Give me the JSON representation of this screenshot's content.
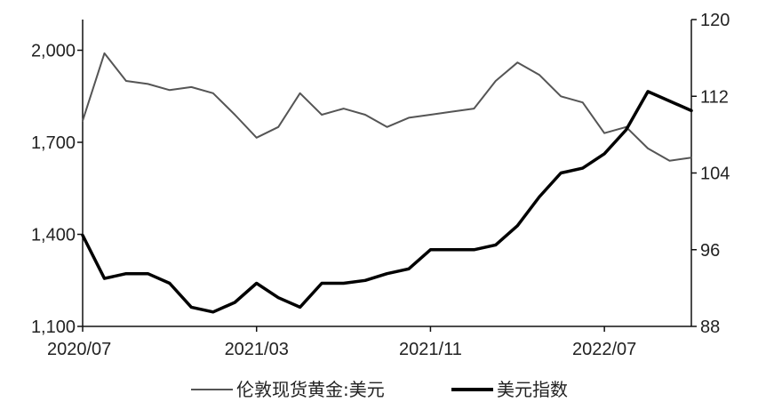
{
  "chart_data": {
    "type": "line",
    "x": [
      "2020-07",
      "2020-08",
      "2020-09",
      "2020-10",
      "2020-11",
      "2020-12",
      "2021-01",
      "2021-02",
      "2021-03",
      "2021-04",
      "2021-05",
      "2021-06",
      "2021-07",
      "2021-08",
      "2021-09",
      "2021-10",
      "2021-11",
      "2021-12",
      "2022-01",
      "2022-02",
      "2022-03",
      "2022-04",
      "2022-05",
      "2022-06",
      "2022-07",
      "2022-08",
      "2022-09",
      "2022-10",
      "2022-11"
    ],
    "x_tick_labels": [
      "2020/07",
      "2021/03",
      "2021/11",
      "2022/07"
    ],
    "y_left": {
      "range": [
        1100,
        2100
      ],
      "ticks": [
        "1,100",
        "1,400",
        "1,700",
        "2,000"
      ]
    },
    "y_right": {
      "range": [
        88,
        120
      ],
      "ticks": [
        "88",
        "96",
        "104",
        "112",
        "120"
      ]
    },
    "series": [
      {
        "name": "伦敦现货黄金:美元",
        "axis": "left",
        "color": "#555555",
        "values": [
          1770,
          1990,
          1900,
          1890,
          1870,
          1880,
          1860,
          1790,
          1715,
          1750,
          1860,
          1790,
          1810,
          1790,
          1750,
          1780,
          1790,
          1800,
          1810,
          1900,
          1960,
          1920,
          1850,
          1830,
          1730,
          1750,
          1680,
          1640,
          1650
        ]
      },
      {
        "name": "美元指数",
        "axis": "right",
        "color": "#000000",
        "values": [
          97.5,
          93.0,
          93.5,
          93.5,
          92.5,
          90.0,
          89.5,
          90.5,
          92.5,
          91.0,
          90.0,
          92.5,
          92.5,
          92.8,
          93.5,
          94.0,
          96.0,
          96.0,
          96.0,
          96.5,
          98.5,
          101.5,
          104.0,
          104.5,
          106.0,
          108.5,
          112.5,
          111.5,
          110.5
        ]
      }
    ]
  }
}
